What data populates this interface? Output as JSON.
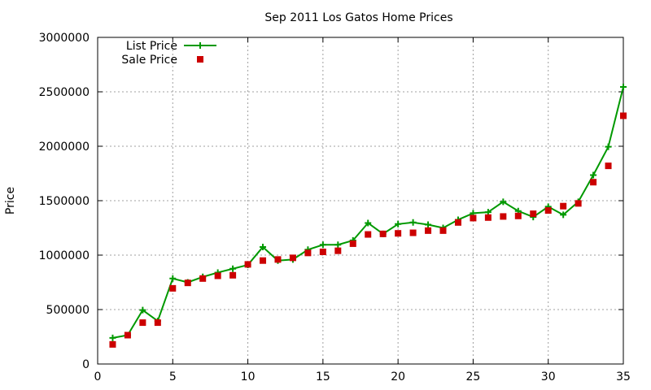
{
  "chart_data": {
    "type": "line",
    "title": "Sep 2011 Los Gatos Home Prices",
    "xlabel": "",
    "ylabel": "Price",
    "xlim": [
      0,
      35
    ],
    "ylim": [
      0,
      3000000
    ],
    "x_ticks": [
      "0",
      "5",
      "10",
      "15",
      "20",
      "25",
      "30",
      "35"
    ],
    "y_ticks": [
      "0",
      "500000",
      "1000000",
      "1500000",
      "2000000",
      "2500000",
      "3000000"
    ],
    "grid": true,
    "legend_position": "top-left",
    "x": [
      1,
      2,
      3,
      4,
      5,
      6,
      7,
      8,
      9,
      10,
      11,
      12,
      13,
      14,
      15,
      16,
      17,
      18,
      19,
      20,
      21,
      22,
      23,
      24,
      25,
      26,
      27,
      28,
      29,
      30,
      31,
      32,
      33,
      34,
      35
    ],
    "series": [
      {
        "name": "List Price",
        "style": "line-plus",
        "color": "#009900",
        "values": [
          240000,
          265000,
          495000,
          395000,
          785000,
          750000,
          800000,
          840000,
          875000,
          910000,
          1075000,
          950000,
          960000,
          1050000,
          1095000,
          1095000,
          1135000,
          1295000,
          1195000,
          1285000,
          1300000,
          1280000,
          1250000,
          1325000,
          1385000,
          1395000,
          1490000,
          1405000,
          1350000,
          1445000,
          1370000,
          1490000,
          1735000,
          1995000,
          2545000
        ]
      },
      {
        "name": "Sale Price",
        "style": "square-points",
        "color": "#cc0000",
        "values": [
          180000,
          265000,
          380000,
          380000,
          695000,
          745000,
          785000,
          810000,
          815000,
          915000,
          950000,
          960000,
          975000,
          1020000,
          1030000,
          1040000,
          1105000,
          1190000,
          1195000,
          1200000,
          1205000,
          1225000,
          1225000,
          1300000,
          1340000,
          1345000,
          1355000,
          1360000,
          1380000,
          1410000,
          1450000,
          1475000,
          1670000,
          1820000,
          2280000
        ]
      }
    ]
  }
}
